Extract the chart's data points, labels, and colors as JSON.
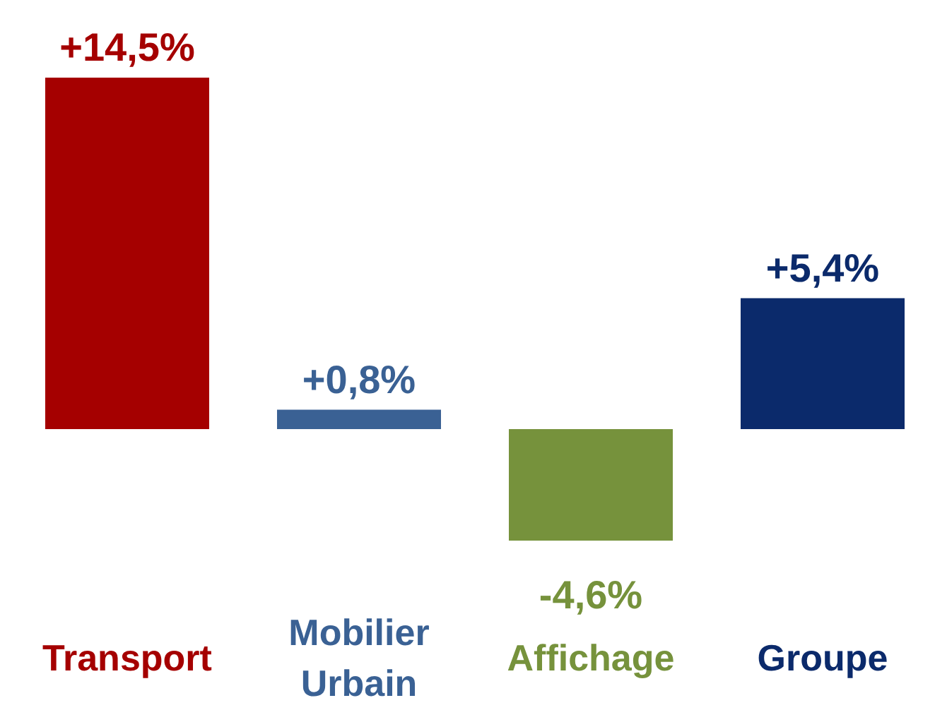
{
  "chart_data": {
    "type": "bar",
    "categories": [
      "Transport",
      "Mobilier Urbain",
      "Affichage",
      "Groupe"
    ],
    "values": [
      14.5,
      0.8,
      -4.6,
      5.4
    ],
    "colors": [
      "#a50000",
      "#3a6194",
      "#76923c",
      "#0b2a6b"
    ],
    "value_labels": [
      "+14,5%",
      "+0,8%",
      "-4,6%",
      "+5,4%"
    ],
    "grid": false,
    "legend": false
  }
}
